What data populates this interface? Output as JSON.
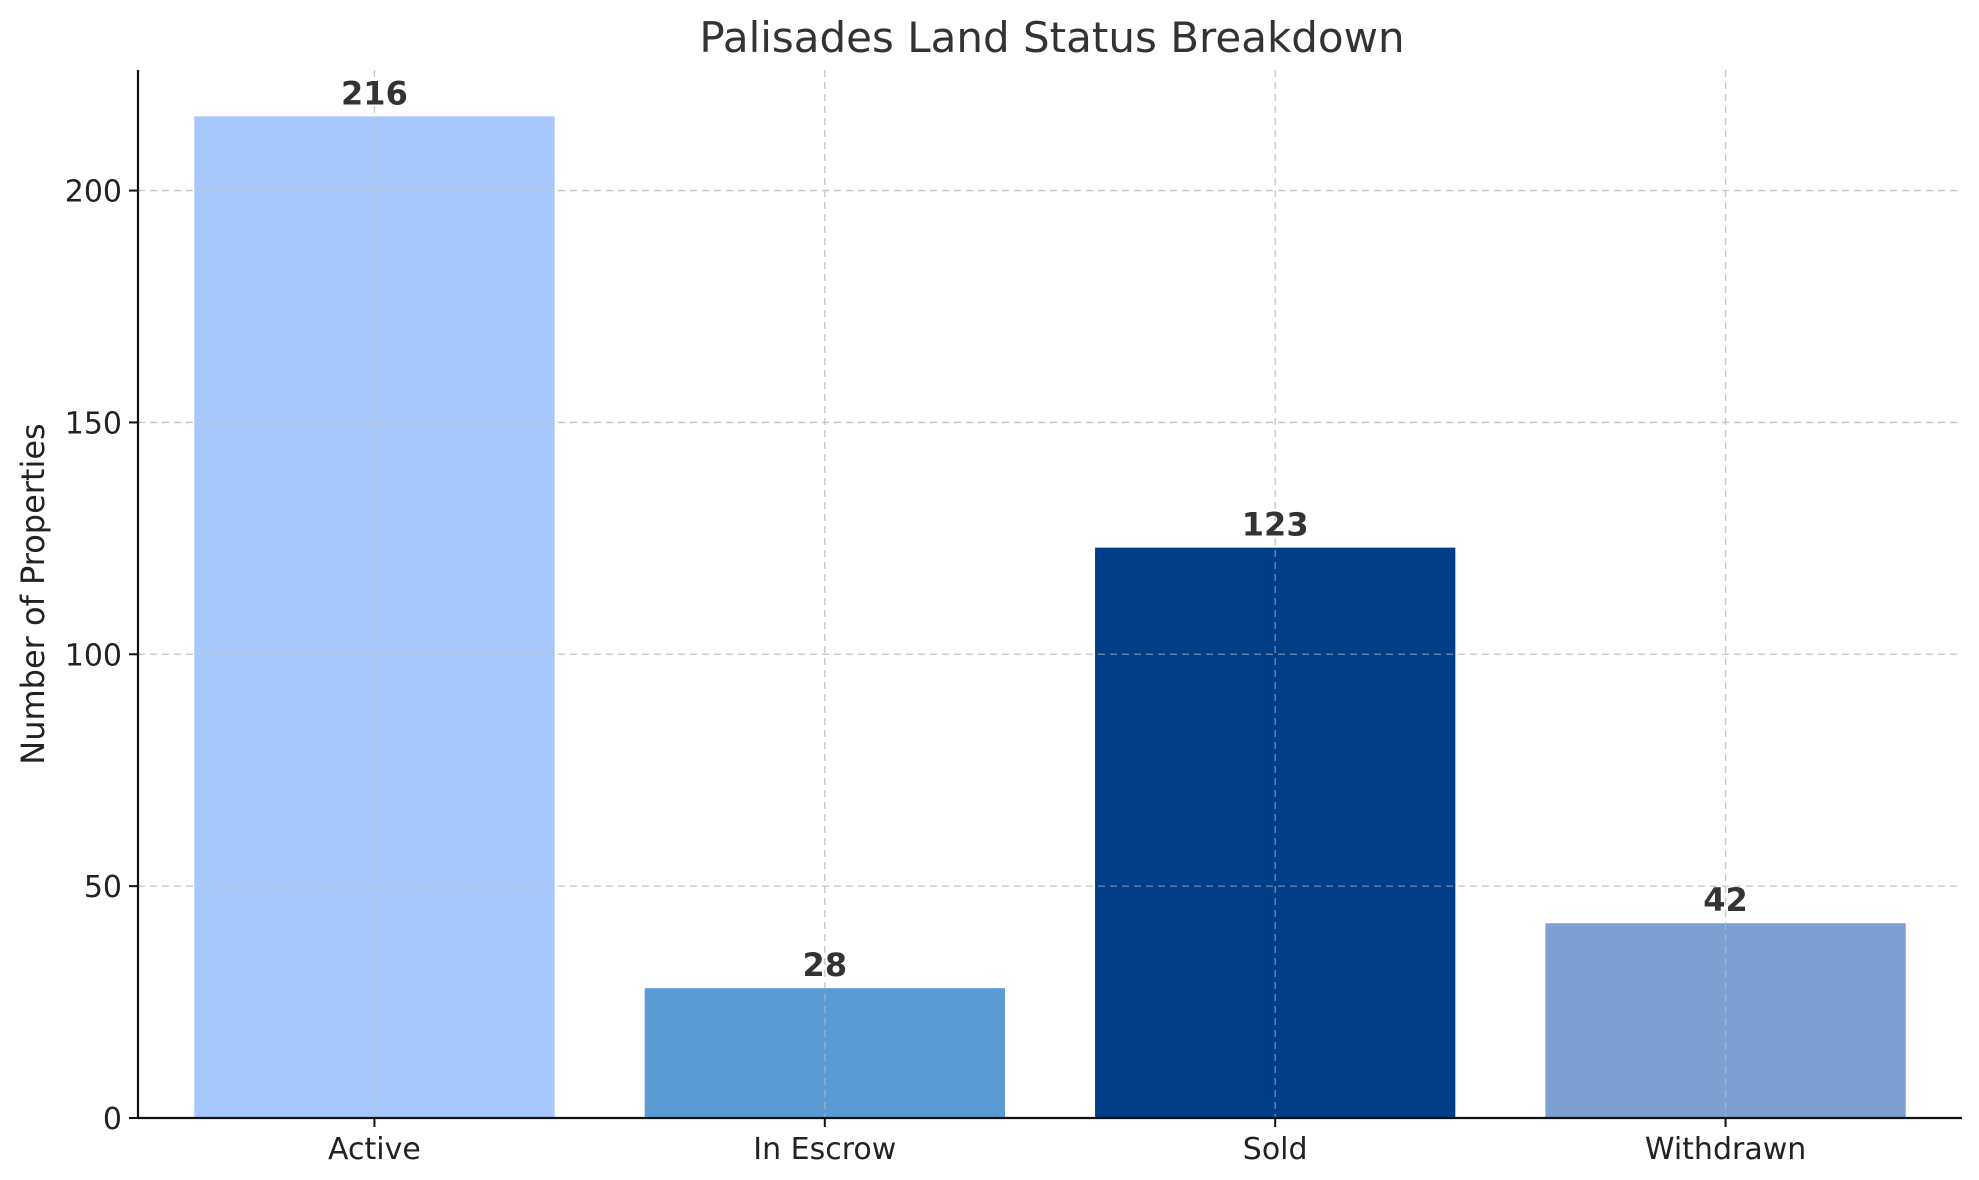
{
  "chart_data": {
    "type": "bar",
    "title": "Palisades Land Status Breakdown",
    "xlabel": "",
    "ylabel": "Number of Properties",
    "categories": [
      "Active",
      "In Escrow",
      "Sold",
      "Withdrawn"
    ],
    "values": [
      216,
      28,
      123,
      42
    ],
    "value_labels": [
      "216",
      "28",
      "123",
      "42"
    ],
    "colors": [
      "#a6c8fc",
      "#5b9bd5",
      "#003f87",
      "#7ba0d1"
    ],
    "ylim": [
      0,
      226
    ],
    "yticks": [
      0,
      50,
      100,
      150,
      200
    ],
    "ytick_labels": [
      "0",
      "50",
      "100",
      "150",
      "200"
    ],
    "grid": true,
    "legend": "none"
  }
}
